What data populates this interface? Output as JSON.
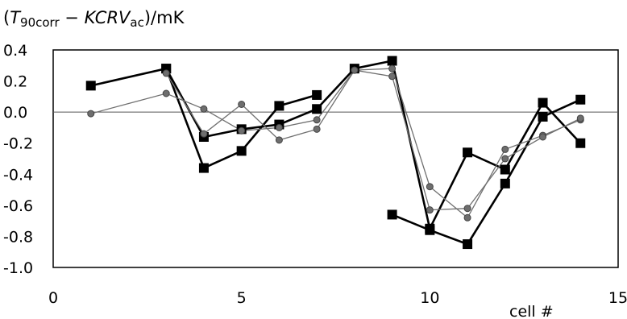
{
  "chart_data": {
    "type": "line",
    "ylabel": {
      "open": "(",
      "t_symbol": "T",
      "t_subscript": "90corr",
      "minus": " − ",
      "kcrv_symbol": "KCRV",
      "kcrv_subscript": "ac",
      "unit": ")/mK"
    },
    "xlabel": "cell #",
    "xlim": [
      0,
      15
    ],
    "ylim": [
      -1.0,
      0.4
    ],
    "xticks": [
      0,
      5,
      10,
      15
    ],
    "xtick_labels": [
      "0",
      "5",
      "10",
      "15"
    ],
    "yticks": [
      0.4,
      0.2,
      0.0,
      -0.2,
      -0.4,
      -0.6,
      -0.8,
      -1.0
    ],
    "ytick_labels": [
      "0.4",
      "0.2",
      "0.0",
      "-0.2",
      "-0.4",
      "-0.6",
      "-0.8",
      "-1.0"
    ],
    "zero_line": true,
    "grid": false,
    "series": [
      {
        "marker": "square-black",
        "line": "thick",
        "color": "#000000",
        "points": [
          [
            1,
            0.17
          ],
          [
            3,
            0.28
          ],
          [
            4,
            -0.16
          ],
          [
            5,
            -0.11
          ],
          [
            6,
            -0.08
          ],
          [
            7,
            0.02
          ],
          [
            8,
            0.28
          ],
          [
            9,
            0.33
          ],
          [
            10,
            -0.75
          ],
          [
            11,
            -0.26
          ],
          [
            12,
            -0.37
          ],
          [
            13,
            0.06
          ],
          [
            14,
            -0.2
          ]
        ]
      },
      {
        "marker": "square-black",
        "line": "thick",
        "color": "#000000",
        "points": [
          [
            3,
            0.28
          ],
          [
            4,
            -0.36
          ],
          [
            5,
            -0.25
          ],
          [
            6,
            0.04
          ],
          [
            7,
            0.11
          ]
        ]
      },
      {
        "marker": "square-black",
        "line": "thick",
        "color": "#000000",
        "points": [
          [
            9,
            -0.66
          ],
          [
            10,
            -0.76
          ],
          [
            11,
            -0.85
          ],
          [
            12,
            -0.46
          ],
          [
            13,
            -0.03
          ],
          [
            14,
            0.08
          ]
        ]
      },
      {
        "marker": "circle-gray",
        "line": "thin",
        "color": "#707070",
        "points": [
          [
            1,
            -0.01
          ],
          [
            3,
            0.12
          ],
          [
            4,
            0.02
          ],
          [
            5,
            -0.12
          ],
          [
            6,
            -0.1
          ],
          [
            7,
            -0.05
          ],
          [
            8,
            0.27
          ],
          [
            9,
            0.28
          ],
          [
            10,
            -0.48
          ],
          [
            11,
            -0.68
          ],
          [
            12,
            -0.24
          ],
          [
            13,
            -0.15
          ],
          [
            14,
            -0.05
          ]
        ]
      },
      {
        "marker": "circle-gray",
        "line": "thin",
        "color": "#707070",
        "points": [
          [
            3,
            0.25
          ],
          [
            4,
            -0.14
          ],
          [
            5,
            0.05
          ],
          [
            6,
            -0.18
          ],
          [
            7,
            -0.11
          ],
          [
            8,
            0.27
          ],
          [
            9,
            0.23
          ],
          [
            10,
            -0.63
          ],
          [
            11,
            -0.62
          ],
          [
            12,
            -0.3
          ],
          [
            13,
            -0.16
          ],
          [
            14,
            -0.04
          ]
        ]
      }
    ]
  }
}
